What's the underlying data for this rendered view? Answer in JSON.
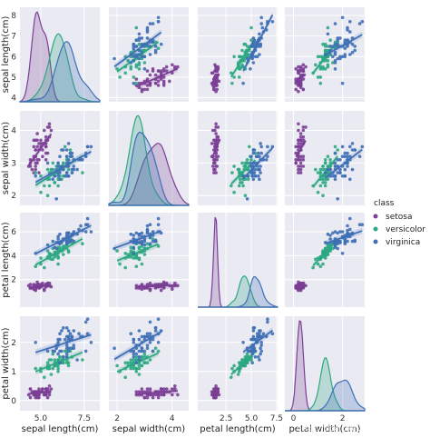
{
  "chart_data": {
    "type": "scatter",
    "variables": [
      "sepal length(cm)",
      "sepal width(cm)",
      "petal length(cm)",
      "petal width(cm)"
    ],
    "ranges": [
      [
        3.8,
        8.4
      ],
      [
        1.7,
        4.6
      ],
      [
        -0.3,
        7.6
      ],
      [
        -0.35,
        2.9
      ]
    ],
    "ticks": [
      [
        4,
        5,
        6,
        7,
        8
      ],
      [
        2,
        3,
        4
      ],
      [
        2,
        4,
        6
      ],
      [
        0,
        1,
        2
      ]
    ],
    "xticks": [
      [
        5.0,
        7.5
      ],
      [
        2,
        4
      ],
      [
        2.5,
        5.0,
        7.5
      ],
      [
        0,
        2
      ]
    ],
    "xtick_labels": [
      [
        "5.0",
        "7.5"
      ],
      [
        "2",
        "4"
      ],
      [
        "2.5",
        "5.0",
        "7.5"
      ],
      [
        "0",
        "2"
      ]
    ],
    "legend": {
      "title": "class",
      "placement": "center-right",
      "entries": [
        "setosa",
        "versicolor",
        "virginica"
      ]
    },
    "series": [
      {
        "name": "setosa",
        "color": "#7b3f95",
        "means": [
          5.01,
          3.43,
          1.46,
          0.25
        ],
        "sds": [
          0.35,
          0.38,
          0.17,
          0.11
        ]
      },
      {
        "name": "versicolor",
        "color": "#2ca882",
        "means": [
          5.94,
          2.77,
          4.26,
          1.33
        ],
        "sds": [
          0.52,
          0.31,
          0.47,
          0.2
        ]
      },
      {
        "name": "virginica",
        "color": "#3f6fb5",
        "means": [
          6.59,
          2.97,
          5.55,
          2.03
        ],
        "sds": [
          0.64,
          0.32,
          0.55,
          0.27
        ]
      }
    ],
    "grid": true,
    "diagonal": "kde",
    "off_diagonal": "scatter-with-regression"
  },
  "watermark": "https://blog.csdn.net/qq_21478261"
}
